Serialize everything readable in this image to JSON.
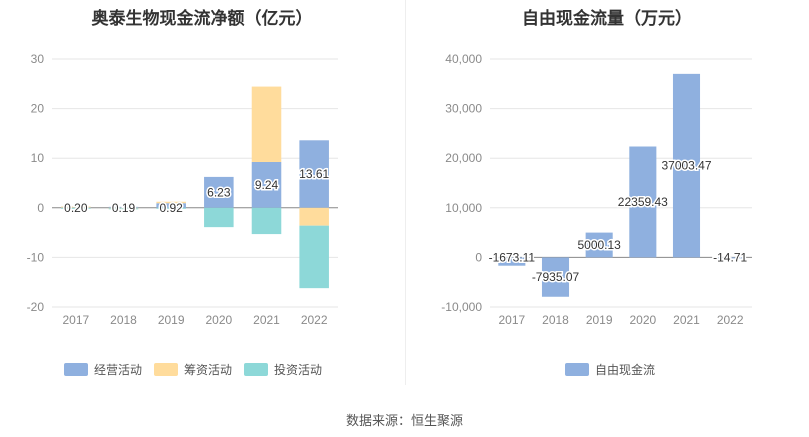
{
  "source": "数据来源：恒生聚源",
  "chart_data": [
    {
      "type": "bar",
      "stacked": true,
      "title": "奥泰生物现金流净额（亿元）",
      "categories": [
        "2017",
        "2018",
        "2019",
        "2020",
        "2021",
        "2022"
      ],
      "ylim": [
        -20,
        30
      ],
      "yticks": [
        -20,
        -10,
        0,
        10,
        20,
        30
      ],
      "grid": true,
      "legend_position": "bottom",
      "series": [
        {
          "name": "经营活动",
          "color": "#8fb0df",
          "values": [
            0.2,
            0.19,
            0.92,
            6.23,
            9.24,
            13.61
          ]
        },
        {
          "name": "筹资活动",
          "color": "#ffdc9c",
          "values": [
            0.05,
            -0.1,
            0.3,
            0,
            15.2,
            -3.6
          ]
        },
        {
          "name": "投资活动",
          "color": "#8dd8d8",
          "values": [
            -0.15,
            -0.05,
            -0.2,
            -3.9,
            -5.3,
            -12.6
          ]
        }
      ],
      "data_labels": [
        "0.20",
        "0.19",
        "0.92",
        "6.23",
        "9.24",
        "13.61"
      ]
    },
    {
      "type": "bar",
      "title": "自由现金流量（万元）",
      "categories": [
        "2017",
        "2018",
        "2019",
        "2020",
        "2021",
        "2022"
      ],
      "ylim": [
        -10000,
        40000
      ],
      "yticks": [
        -10000,
        0,
        10000,
        20000,
        30000,
        40000
      ],
      "ytick_labels": [
        "-10,000",
        "0",
        "10,000",
        "20,000",
        "30,000",
        "40,000"
      ],
      "grid": true,
      "legend_position": "bottom",
      "series": [
        {
          "name": "自由现金流",
          "color": "#8fb0df",
          "values": [
            -1673.11,
            -7935.07,
            5000.13,
            22359.43,
            37003.47,
            -14.71
          ]
        }
      ],
      "data_labels": [
        "-1673.11",
        "-7935.07",
        "5000.13",
        "22359.43",
        "37003.47",
        "-14.71"
      ]
    }
  ]
}
